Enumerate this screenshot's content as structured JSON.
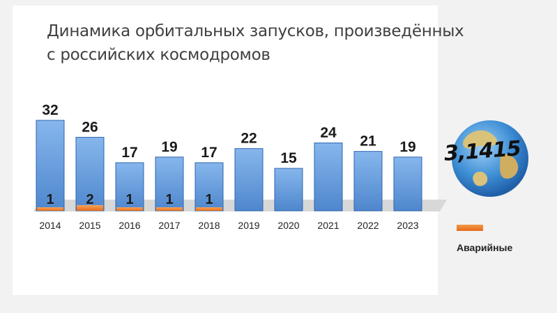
{
  "title_lines": [
    "Динамика орбитальных запусков, произведённых",
    "с российских космодромов"
  ],
  "logo": {
    "text": "3,1415",
    "icon": "globe-icon"
  },
  "legend": {
    "label": "Аварийные",
    "color": "#e86a18"
  },
  "colors": {
    "bar_top": "#86b6ec",
    "bar_bottom": "#4f87cd",
    "bar_edge": "#2e64b0",
    "failed": "#e86a18",
    "base": "#d8d8d8"
  },
  "chart_data": {
    "type": "bar",
    "categories": [
      "2014",
      "2015",
      "2016",
      "2017",
      "2018",
      "2019",
      "2020",
      "2021",
      "2022",
      "2023"
    ],
    "series": [
      {
        "name": "",
        "values": [
          32,
          26,
          17,
          19,
          17,
          22,
          15,
          24,
          21,
          19
        ]
      },
      {
        "name": "Аварийные",
        "values": [
          1,
          2,
          1,
          1,
          1,
          null,
          null,
          null,
          null,
          null
        ]
      }
    ],
    "title": "Динамика орбитальных запусков, произведённых с российских космодромов",
    "xlabel": "",
    "ylabel": "",
    "ylim": [
      0,
      32
    ],
    "grid": false,
    "legend_position": "right"
  }
}
